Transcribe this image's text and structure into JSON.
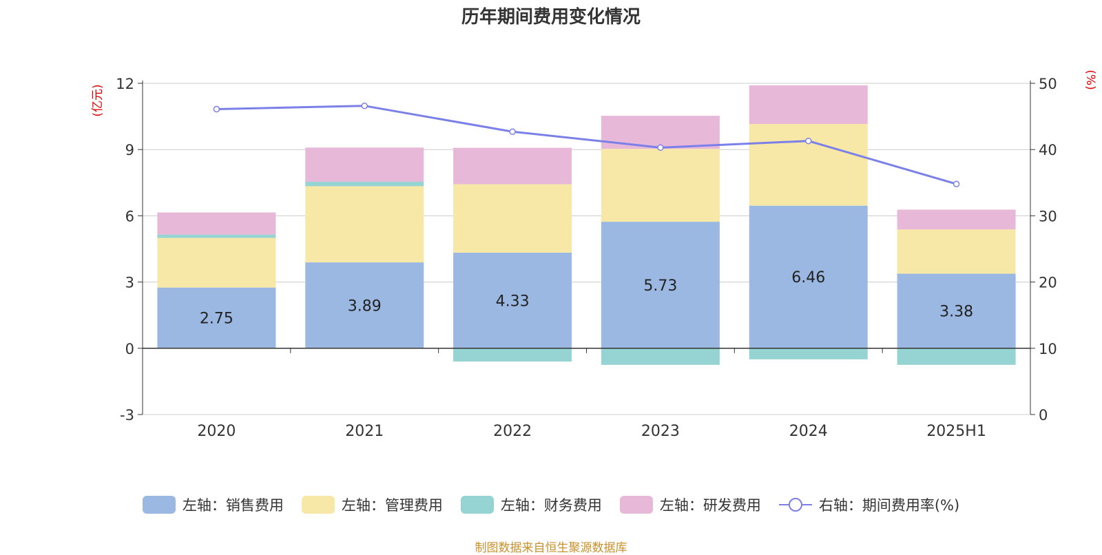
{
  "chart_data": {
    "type": "bar",
    "title": "历年期间费用变化情况",
    "categories": [
      "2020",
      "2021",
      "2022",
      "2023",
      "2024",
      "2025H1"
    ],
    "left_axis": {
      "unit_label": "(亿元)",
      "ticks": [
        "-3",
        "0",
        "3",
        "6",
        "9",
        "12"
      ],
      "ylim": [
        -3,
        12
      ]
    },
    "right_axis": {
      "unit_label": "(%)",
      "ticks": [
        "0",
        "10",
        "20",
        "30",
        "40",
        "50"
      ],
      "ylim": [
        0,
        50
      ]
    },
    "stacked": true,
    "series": [
      {
        "name": "左轴：销售费用",
        "axis": "left",
        "color": "#9bb8e2",
        "values": [
          2.75,
          3.89,
          4.33,
          5.73,
          6.46,
          3.38
        ],
        "labels": [
          "2.75",
          "3.89",
          "4.33",
          "5.73",
          "6.46",
          "3.38"
        ]
      },
      {
        "name": "左轴：管理费用",
        "axis": "left",
        "color": "#f8e8a8",
        "values": [
          2.25,
          3.45,
          3.1,
          3.3,
          3.7,
          2.0
        ]
      },
      {
        "name": "左轴：财务费用",
        "axis": "left",
        "color": "#96d4d4",
        "values": [
          0.15,
          0.2,
          -0.6,
          -0.75,
          -0.5,
          -0.75
        ]
      },
      {
        "name": "左轴：研发费用",
        "axis": "left",
        "color": "#e8b8d8",
        "values": [
          1.0,
          1.55,
          1.65,
          1.5,
          1.75,
          0.9
        ]
      },
      {
        "name": "右轴：期间费用率(%)",
        "axis": "right",
        "type": "line",
        "color": "#7b7fe8",
        "values": [
          46.1,
          46.6,
          42.7,
          40.3,
          41.3,
          34.8
        ]
      }
    ],
    "grid": true,
    "legend_position": "bottom"
  },
  "colors": {
    "axis_unit": "#e00000",
    "source_text": "#c8912b"
  },
  "source": "制图数据来自恒生聚源数据库"
}
